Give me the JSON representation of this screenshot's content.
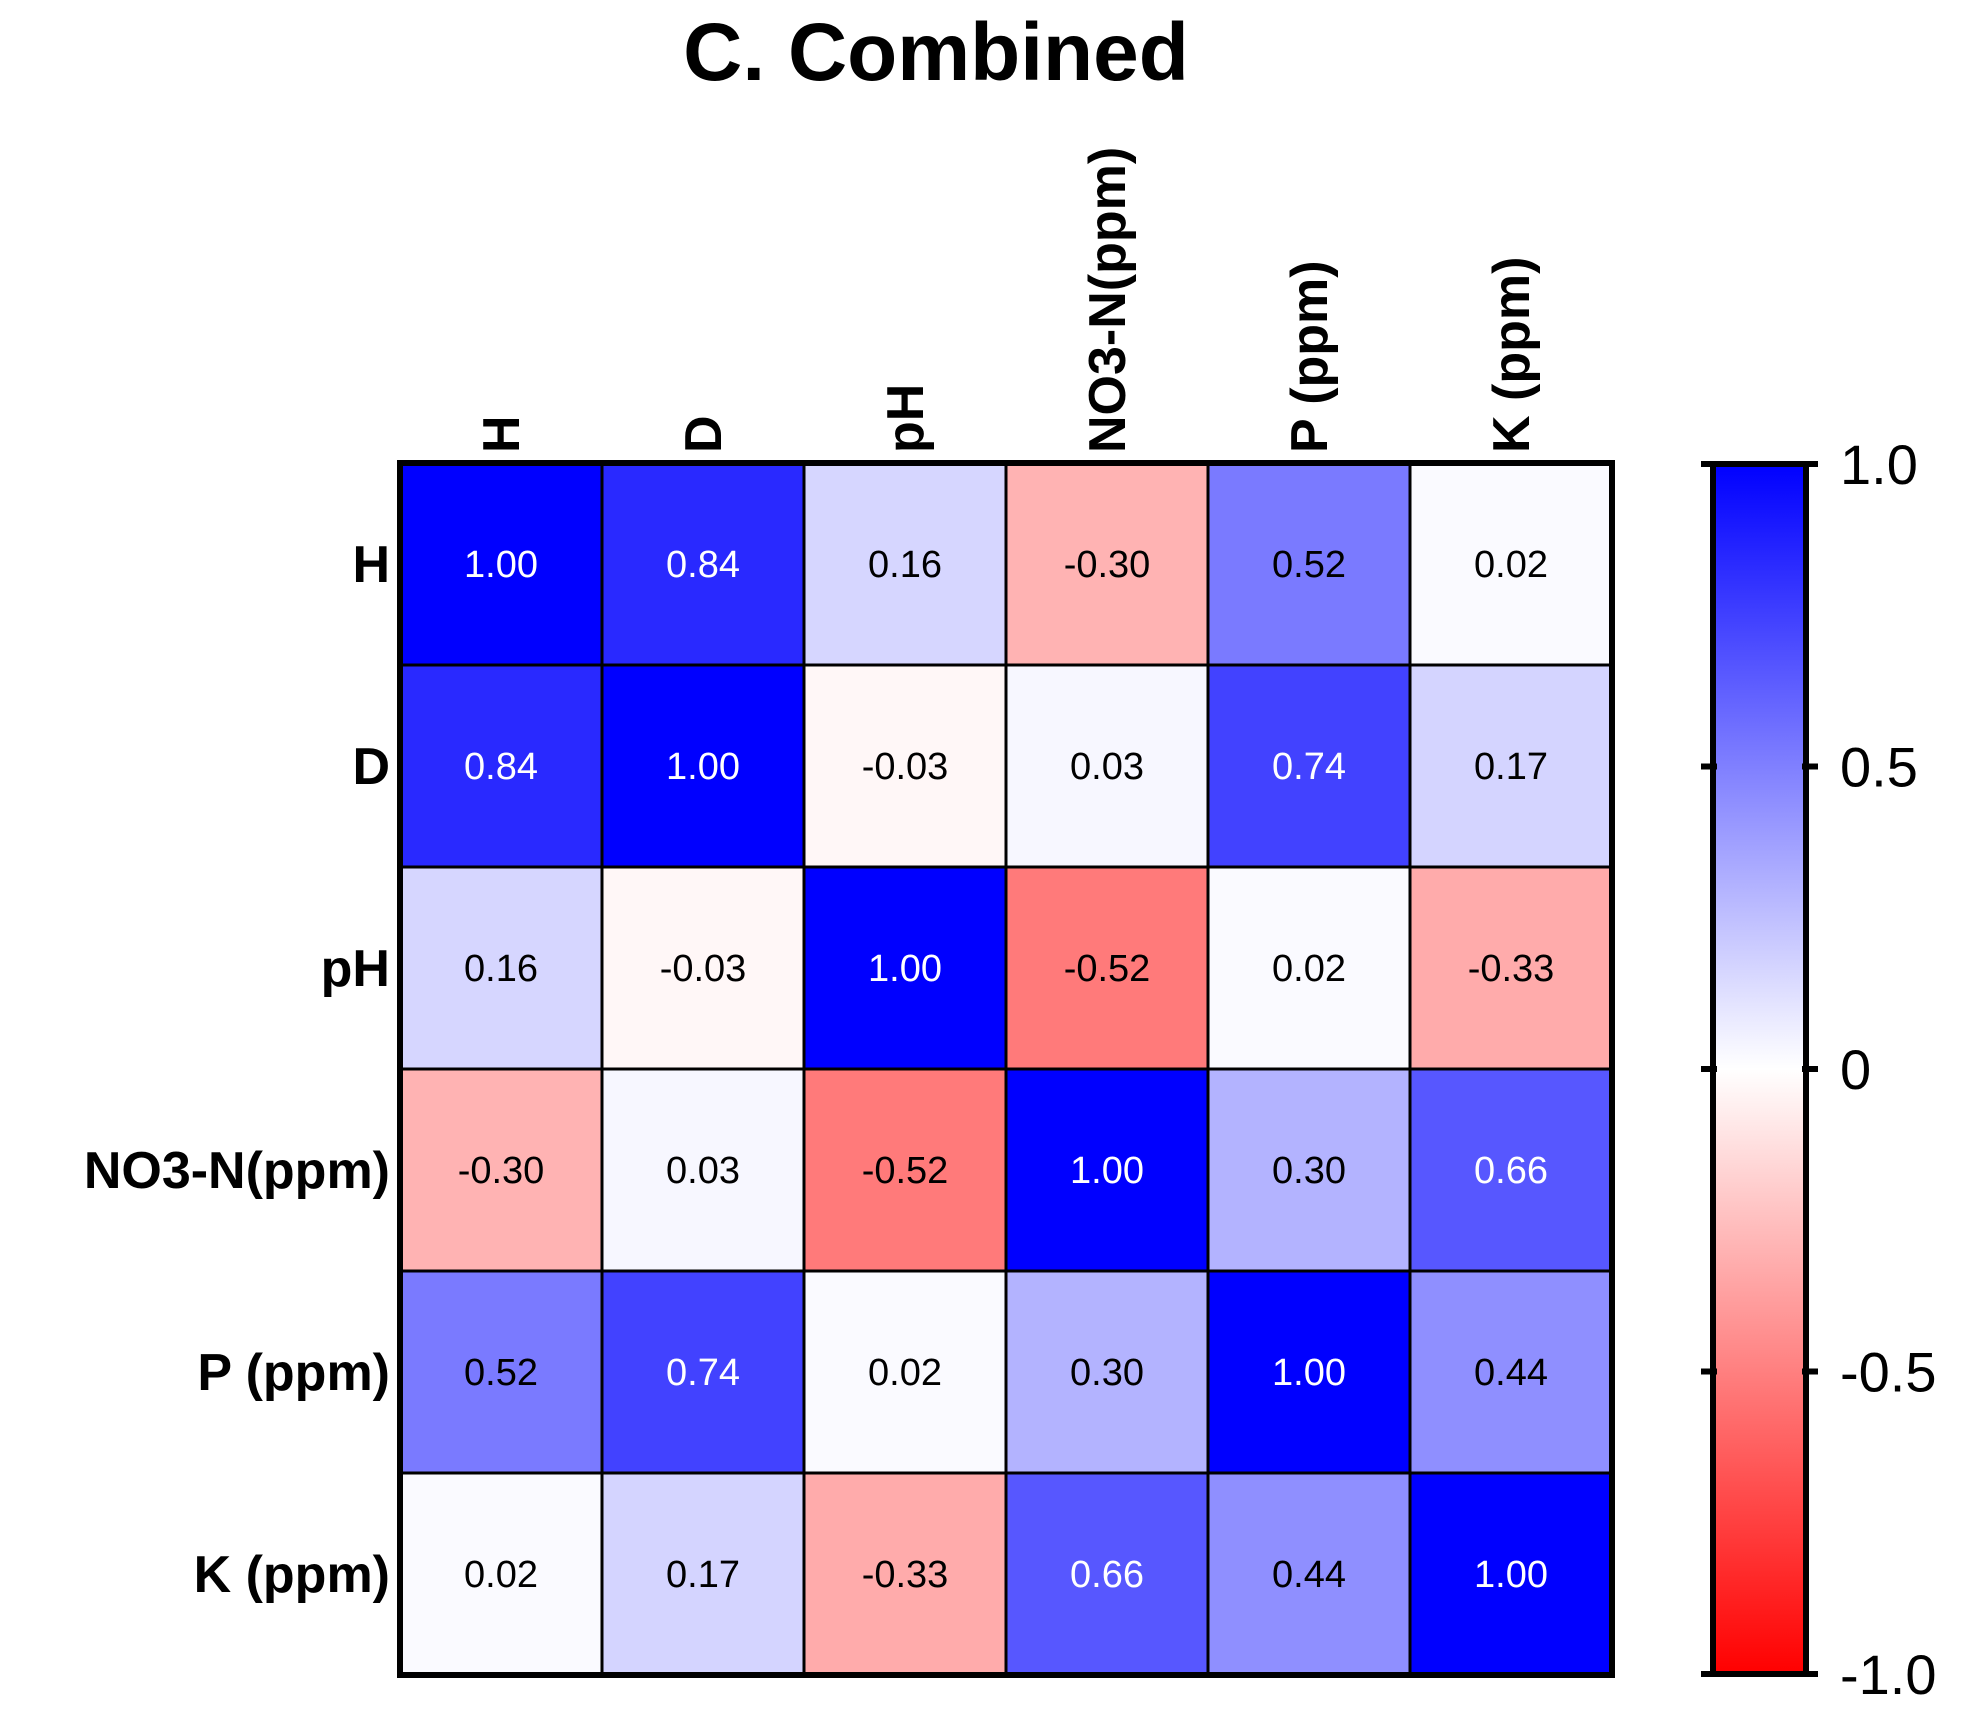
{
  "chart_data": {
    "type": "heatmap",
    "title": "C. Combined",
    "rows": [
      "H",
      "D",
      "pH",
      "NO3-N(ppm)",
      "P (ppm)",
      "K (ppm)"
    ],
    "columns": [
      "H",
      "D",
      "pH",
      "NO3-N(ppm)",
      "P (ppm)",
      "K (ppm)"
    ],
    "values": [
      [
        1.0,
        0.84,
        0.16,
        -0.3,
        0.52,
        0.02
      ],
      [
        0.84,
        1.0,
        -0.03,
        0.03,
        0.74,
        0.17
      ],
      [
        0.16,
        -0.03,
        1.0,
        -0.52,
        0.02,
        -0.33
      ],
      [
        -0.3,
        0.03,
        -0.52,
        1.0,
        0.3,
        0.66
      ],
      [
        0.52,
        0.74,
        0.02,
        0.3,
        1.0,
        0.44
      ],
      [
        0.02,
        0.17,
        -0.33,
        0.66,
        0.44,
        1.0
      ]
    ],
    "value_labels": [
      [
        "1.00",
        "0.84",
        "0.16",
        "-0.30",
        "0.52",
        "0.02"
      ],
      [
        "0.84",
        "1.00",
        "-0.03",
        "0.03",
        "0.74",
        "0.17"
      ],
      [
        "0.16",
        "-0.03",
        "1.00",
        "-0.52",
        "0.02",
        "-0.33"
      ],
      [
        "-0.30",
        "0.03",
        "-0.52",
        "1.00",
        "0.30",
        "0.66"
      ],
      [
        "0.52",
        "0.74",
        "0.02",
        "0.30",
        "1.00",
        "0.44"
      ],
      [
        "0.02",
        "0.17",
        "-0.33",
        "0.66",
        "0.44",
        "1.00"
      ]
    ],
    "colorbar": {
      "range": [
        -1.0,
        1.0
      ],
      "ticks": [
        1.0,
        0.5,
        0,
        -0.5,
        -1.0
      ],
      "tick_labels": [
        "1.0",
        "0.5",
        "0",
        "-0.5",
        "-1.0"
      ],
      "low_color": "#ff0000",
      "mid_color": "#ffffff",
      "high_color": "#0000ff"
    }
  }
}
